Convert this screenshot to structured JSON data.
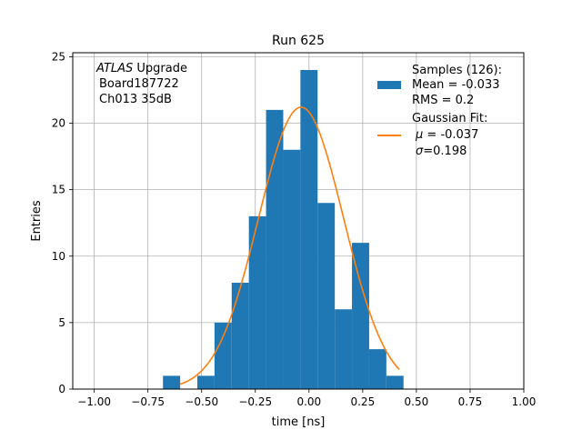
{
  "chart_data": {
    "type": "bar",
    "title": "Run 625",
    "xlabel": "time [ns]",
    "ylabel": "Entries",
    "xlim": [
      -1.1,
      1.0
    ],
    "ylim": [
      0,
      25.3
    ],
    "grid": true,
    "x_ticks": [
      -1.0,
      -0.75,
      -0.5,
      -0.25,
      0.0,
      0.25,
      0.5,
      0.75,
      1.0
    ],
    "x_tick_labels": [
      "−1.00",
      "−0.75",
      "−0.50",
      "−0.25",
      "0.00",
      "0.25",
      "0.50",
      "0.75",
      "1.00"
    ],
    "y_ticks": [
      0,
      5,
      10,
      15,
      20,
      25
    ],
    "y_tick_labels": [
      "0",
      "5",
      "10",
      "15",
      "20",
      "25"
    ],
    "histogram": {
      "bin_edges": [
        -0.68,
        -0.6,
        -0.52,
        -0.44,
        -0.36,
        -0.28,
        -0.2,
        -0.12,
        -0.04,
        0.04,
        0.12,
        0.2,
        0.28,
        0.36,
        0.44,
        0.52
      ],
      "counts": [
        1,
        0,
        1,
        5,
        8,
        13,
        21,
        18,
        24,
        14,
        6,
        11,
        3,
        1,
        0
      ],
      "color": "#1f77b4"
    },
    "fit": {
      "type": "gaussian",
      "mu": -0.037,
      "sigma": 0.198,
      "amplitude": 21.2,
      "x_range": [
        -0.6,
        0.42
      ],
      "color": "#ff7f0e"
    },
    "annotation": {
      "italic_part": "ATLAS",
      "line1_rest": " Upgrade",
      "line2": "Board187722",
      "line3": "Ch013 35dB"
    },
    "legend": {
      "placement": "top-right",
      "samples": {
        "line1": "Samples (126):",
        "line2": " Mean = -0.033",
        "line3": " RMS = 0.2"
      },
      "fit": {
        "line1": "Gaussian Fit:",
        "line2_sym": "μ",
        "line2_rest": " = -0.037",
        "line3_sym": "σ",
        "line3_rest": "=0.198"
      }
    }
  }
}
